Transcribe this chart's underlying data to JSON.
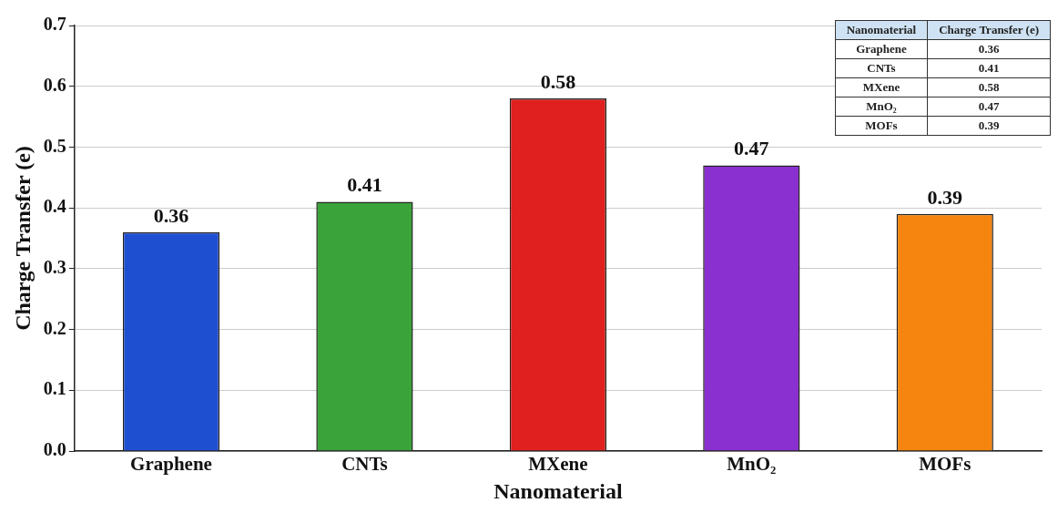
{
  "chart_data": [
    {
      "type": "bar",
      "xlabel": "Nanomaterial",
      "ylabel": "Charge Transfer (e)",
      "categories": [
        "Graphene",
        "CNTs",
        "MXene",
        "MnO₂",
        "MOFs"
      ],
      "values": [
        0.36,
        0.41,
        0.58,
        0.47,
        0.39
      ],
      "colors": [
        "#1f4fd1",
        "#3aa43a",
        "#e0201e",
        "#8a2fd0",
        "#f5850f"
      ],
      "ylim": [
        0,
        0.7
      ],
      "yticks": [
        {
          "value": 0,
          "label": "0.0"
        },
        0.1,
        0.2,
        0.3,
        0.4,
        0.5,
        0.6,
        0.7
      ],
      "grid": "y",
      "legend": false,
      "data_labels": true
    },
    {
      "type": "other",
      "xlabel": "Nanomaterial",
      "ylabel": "Charge Transfer (e)",
      "categories": [
        "Graphene",
        "CNTs",
        "MXene",
        "MnO₂",
        "MOFs"
      ],
      "values": [
        0.36,
        0.41,
        0.58,
        0.47,
        0.39
      ],
      "data_labels": true
    }
  ]
}
